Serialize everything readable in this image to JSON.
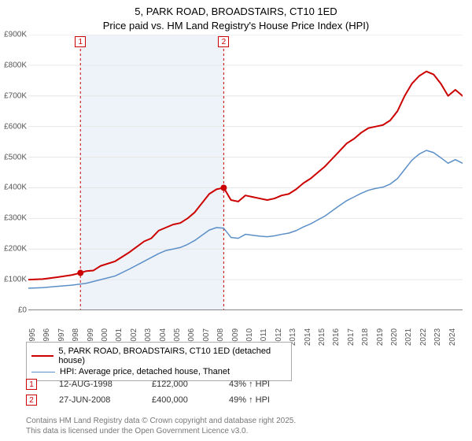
{
  "title_block": {
    "line1": "5, PARK ROAD, BROADSTAIRS, CT10 1ED",
    "line2": "Price paid vs. HM Land Registry's House Price Index (HPI)"
  },
  "chart": {
    "type": "line",
    "background_color": "#ffffff",
    "grid_color": "#e6e6e6",
    "axis_color": "#888888",
    "xlim": [
      1995,
      2025
    ],
    "ylim": [
      0,
      900000
    ],
    "y_ticks": [
      {
        "v": 0,
        "label": "£0"
      },
      {
        "v": 100000,
        "label": "£100K"
      },
      {
        "v": 200000,
        "label": "£200K"
      },
      {
        "v": 300000,
        "label": "£300K"
      },
      {
        "v": 400000,
        "label": "£400K"
      },
      {
        "v": 500000,
        "label": "£500K"
      },
      {
        "v": 600000,
        "label": "£600K"
      },
      {
        "v": 700000,
        "label": "£700K"
      },
      {
        "v": 800000,
        "label": "£800K"
      },
      {
        "v": 900000,
        "label": "£900K"
      }
    ],
    "x_ticks": [
      1995,
      1996,
      1997,
      1998,
      1999,
      2000,
      2001,
      2002,
      2003,
      2004,
      2005,
      2006,
      2007,
      2008,
      2009,
      2010,
      2011,
      2012,
      2013,
      2014,
      2015,
      2016,
      2017,
      2018,
      2019,
      2020,
      2021,
      2022,
      2023,
      2024
    ],
    "band": {
      "x_start": 1998.6,
      "x_end": 2008.5,
      "fill": "#eef3f9"
    },
    "series": [
      {
        "name": "price_paid",
        "label": "5, PARK ROAD, BROADSTAIRS, CT10 1ED (detached house)",
        "color": "#cc0000",
        "line_width": 2,
        "points": [
          [
            1995.0,
            100000
          ],
          [
            1996.0,
            102000
          ],
          [
            1997.0,
            108000
          ],
          [
            1998.0,
            115000
          ],
          [
            1998.6,
            122000
          ],
          [
            1999.0,
            128000
          ],
          [
            1999.5,
            130000
          ],
          [
            2000.0,
            145000
          ],
          [
            2001.0,
            160000
          ],
          [
            2002.0,
            190000
          ],
          [
            2003.0,
            225000
          ],
          [
            2003.5,
            235000
          ],
          [
            2004.0,
            260000
          ],
          [
            2004.5,
            270000
          ],
          [
            2005.0,
            280000
          ],
          [
            2005.5,
            285000
          ],
          [
            2006.0,
            300000
          ],
          [
            2006.5,
            320000
          ],
          [
            2007.0,
            350000
          ],
          [
            2007.5,
            380000
          ],
          [
            2008.0,
            395000
          ],
          [
            2008.5,
            400000
          ],
          [
            2009.0,
            360000
          ],
          [
            2009.5,
            355000
          ],
          [
            2010.0,
            375000
          ],
          [
            2010.5,
            370000
          ],
          [
            2011.0,
            365000
          ],
          [
            2011.5,
            360000
          ],
          [
            2012.0,
            365000
          ],
          [
            2012.5,
            375000
          ],
          [
            2013.0,
            380000
          ],
          [
            2013.5,
            395000
          ],
          [
            2014.0,
            415000
          ],
          [
            2014.5,
            430000
          ],
          [
            2015.0,
            450000
          ],
          [
            2015.5,
            470000
          ],
          [
            2016.0,
            495000
          ],
          [
            2016.5,
            520000
          ],
          [
            2017.0,
            545000
          ],
          [
            2017.5,
            560000
          ],
          [
            2018.0,
            580000
          ],
          [
            2018.5,
            595000
          ],
          [
            2019.0,
            600000
          ],
          [
            2019.5,
            605000
          ],
          [
            2020.0,
            620000
          ],
          [
            2020.5,
            650000
          ],
          [
            2021.0,
            700000
          ],
          [
            2021.5,
            740000
          ],
          [
            2022.0,
            765000
          ],
          [
            2022.5,
            780000
          ],
          [
            2023.0,
            770000
          ],
          [
            2023.5,
            740000
          ],
          [
            2024.0,
            700000
          ],
          [
            2024.5,
            720000
          ],
          [
            2025.0,
            700000
          ]
        ]
      },
      {
        "name": "hpi",
        "label": "HPI: Average price, detached house, Thanet",
        "color": "#5b8fc7",
        "line_width": 1.5,
        "points": [
          [
            1995.0,
            72000
          ],
          [
            1996.0,
            74000
          ],
          [
            1997.0,
            78000
          ],
          [
            1998.0,
            82000
          ],
          [
            1999.0,
            88000
          ],
          [
            2000.0,
            100000
          ],
          [
            2001.0,
            112000
          ],
          [
            2002.0,
            135000
          ],
          [
            2003.0,
            160000
          ],
          [
            2004.0,
            185000
          ],
          [
            2004.5,
            195000
          ],
          [
            2005.0,
            200000
          ],
          [
            2005.5,
            205000
          ],
          [
            2006.0,
            215000
          ],
          [
            2006.5,
            228000
          ],
          [
            2007.0,
            245000
          ],
          [
            2007.5,
            262000
          ],
          [
            2008.0,
            270000
          ],
          [
            2008.5,
            268000
          ],
          [
            2009.0,
            238000
          ],
          [
            2009.5,
            235000
          ],
          [
            2010.0,
            248000
          ],
          [
            2010.5,
            245000
          ],
          [
            2011.0,
            242000
          ],
          [
            2011.5,
            240000
          ],
          [
            2012.0,
            243000
          ],
          [
            2012.5,
            248000
          ],
          [
            2013.0,
            252000
          ],
          [
            2013.5,
            260000
          ],
          [
            2014.0,
            272000
          ],
          [
            2014.5,
            282000
          ],
          [
            2015.0,
            295000
          ],
          [
            2015.5,
            308000
          ],
          [
            2016.0,
            325000
          ],
          [
            2016.5,
            342000
          ],
          [
            2017.0,
            358000
          ],
          [
            2017.5,
            370000
          ],
          [
            2018.0,
            382000
          ],
          [
            2018.5,
            392000
          ],
          [
            2019.0,
            398000
          ],
          [
            2019.5,
            402000
          ],
          [
            2020.0,
            412000
          ],
          [
            2020.5,
            430000
          ],
          [
            2021.0,
            460000
          ],
          [
            2021.5,
            490000
          ],
          [
            2022.0,
            510000
          ],
          [
            2022.5,
            522000
          ],
          [
            2023.0,
            515000
          ],
          [
            2023.5,
            498000
          ],
          [
            2024.0,
            480000
          ],
          [
            2024.5,
            492000
          ],
          [
            2025.0,
            480000
          ]
        ]
      }
    ],
    "sale_markers": [
      {
        "n": "1",
        "x": 1998.6,
        "y": 122000,
        "box_color": "#cc0000"
      },
      {
        "n": "2",
        "x": 2008.5,
        "y": 400000,
        "box_color": "#cc0000"
      }
    ],
    "marker_line_color": "#cc0000",
    "marker_line_dash": "3,3",
    "marker_dot_radius": 4
  },
  "legend": {
    "items": [
      {
        "color": "#cc0000",
        "width": 2,
        "label": "5, PARK ROAD, BROADSTAIRS, CT10 1ED (detached house)"
      },
      {
        "color": "#5b8fc7",
        "width": 1.5,
        "label": "HPI: Average price, detached house, Thanet"
      }
    ]
  },
  "sales": [
    {
      "n": "1",
      "box_color": "#cc0000",
      "date": "12-AUG-1998",
      "price": "£122,000",
      "pct": "43% ↑ HPI"
    },
    {
      "n": "2",
      "box_color": "#cc0000",
      "date": "27-JUN-2008",
      "price": "£400,000",
      "pct": "49% ↑ HPI"
    }
  ],
  "attribution": {
    "line1": "Contains HM Land Registry data © Crown copyright and database right 2025.",
    "line2": "This data is licensed under the Open Government Licence v3.0."
  }
}
